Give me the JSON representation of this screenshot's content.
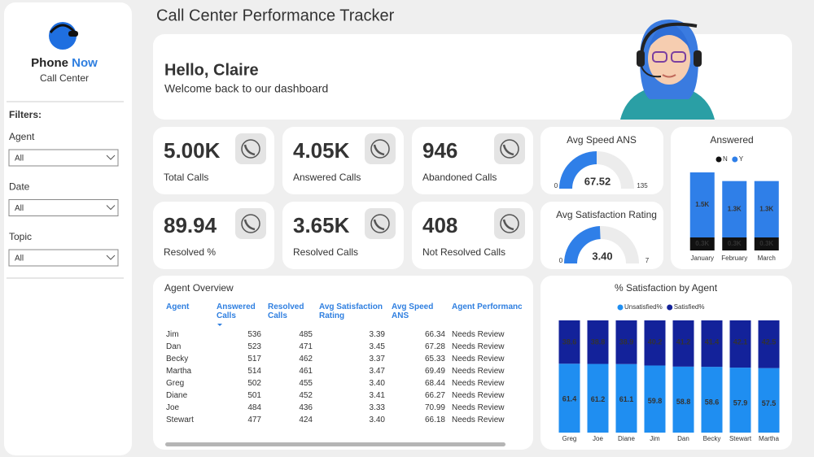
{
  "sidebar": {
    "brand": [
      "Phone",
      "Now"
    ],
    "subtitle": "Call Center",
    "filters_title": "Filters:",
    "filters": [
      {
        "label": "Agent",
        "value": "All"
      },
      {
        "label": "Date",
        "value": "All"
      },
      {
        "label": "Topic",
        "value": "All"
      }
    ]
  },
  "header": {
    "title": "Call Center Performance Tracker",
    "greeting": "Hello, Claire",
    "welcome": "Welcome back to our dashboard"
  },
  "kpis": [
    {
      "value": "5.00K",
      "label": "Total Calls"
    },
    {
      "value": "4.05K",
      "label": "Answered Calls"
    },
    {
      "value": "946",
      "label": "Abandoned Calls"
    },
    {
      "value": "89.94",
      "label": "Resolved %"
    },
    {
      "value": "3.65K",
      "label": "Resolved Calls"
    },
    {
      "value": "408",
      "label": "Not Resolved Calls"
    }
  ],
  "table": {
    "title": "Agent Overview",
    "columns": [
      "Agent",
      "Answered Calls",
      "Resolved Calls",
      "Avg Satisfaction Rating",
      "Avg Speed ANS",
      "Agent Performance"
    ],
    "rows": [
      [
        "Jim",
        "536",
        "485",
        "3.39",
        "66.34",
        "Needs Review"
      ],
      [
        "Dan",
        "523",
        "471",
        "3.45",
        "67.28",
        "Needs Review"
      ],
      [
        "Becky",
        "517",
        "462",
        "3.37",
        "65.33",
        "Needs Review"
      ],
      [
        "Martha",
        "514",
        "461",
        "3.47",
        "69.49",
        "Needs Review"
      ],
      [
        "Greg",
        "502",
        "455",
        "3.40",
        "68.44",
        "Needs Review"
      ],
      [
        "Diane",
        "501",
        "452",
        "3.41",
        "66.27",
        "Needs Review"
      ],
      [
        "Joe",
        "484",
        "436",
        "3.33",
        "70.99",
        "Needs Review"
      ],
      [
        "Stewart",
        "477",
        "424",
        "3.40",
        "66.18",
        "Needs Review"
      ]
    ]
  },
  "chart_data": [
    {
      "type": "gauge",
      "title": "Avg Speed ANS",
      "values": [
        67.52
      ],
      "color": "#2f7fe8",
      "ylim": [
        0,
        135
      ],
      "yticks": [
        0,
        135
      ]
    },
    {
      "type": "gauge",
      "title": "Avg Satisfaction Rating",
      "values": [
        3.4
      ],
      "value_labels": [
        "3.40"
      ],
      "color": "#2f7fe8",
      "ylim": [
        0,
        7
      ],
      "yticks": [
        0,
        7
      ]
    },
    {
      "type": "stacked_bar",
      "title": "Answered",
      "categories": [
        "January",
        "February",
        "March"
      ],
      "series": [
        {
          "name": "N",
          "color": "#111111",
          "values": [
            300,
            300,
            300
          ],
          "value_labels": [
            "0.3K",
            "0.3K",
            "0.3K"
          ]
        },
        {
          "name": "Y",
          "color": "#2f7fe8",
          "values": [
            1500,
            1300,
            1300
          ],
          "value_labels": [
            "1.5K",
            "1.3K",
            "1.3K"
          ]
        }
      ]
    },
    {
      "type": "stacked_bar",
      "title": "% Satisfaction by Agent",
      "categories": [
        "Greg",
        "Joe",
        "Diane",
        "Jim",
        "Dan",
        "Becky",
        "Stewart",
        "Martha"
      ],
      "series": [
        {
          "name": "Unsatisfied%",
          "color": "#1f8ef1",
          "values": [
            61.4,
            61.2,
            61.1,
            59.8,
            58.8,
            58.6,
            57.9,
            57.5
          ]
        },
        {
          "name": "Satisfied%",
          "color": "#13229a",
          "values": [
            38.6,
            38.8,
            38.9,
            40.2,
            41.2,
            41.4,
            42.1,
            42.5
          ]
        }
      ]
    }
  ]
}
